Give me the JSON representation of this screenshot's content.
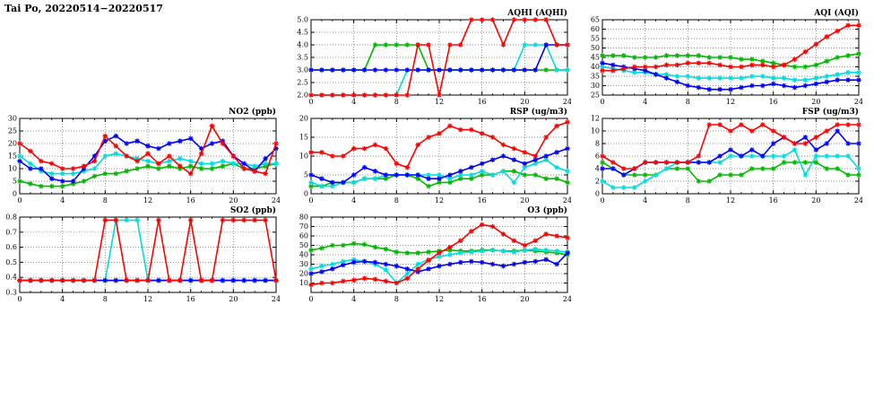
{
  "page_title": "Tai Po, 20220514−20220517",
  "colors": {
    "red": "#ff0000",
    "green": "#00b800",
    "blue": "#0000ff",
    "cyan": "#00dddd",
    "grid": "#666666",
    "axis": "#000000"
  },
  "chart_data": [
    {
      "id": "aqhi",
      "type": "line",
      "title": "AQHI (AQHI)",
      "xlabel": "",
      "ylabel": "",
      "xlim": [
        0,
        24
      ],
      "xticks": [
        0,
        4,
        8,
        12,
        16,
        20,
        24
      ],
      "ylim": [
        2,
        5
      ],
      "ytick_vals": [
        2,
        2.5,
        3,
        3.5,
        4,
        4.5,
        5
      ],
      "ytick_labels": [
        "2.0",
        "2.5",
        "3.0",
        "3.5",
        "4.0",
        "4.5",
        "5.0"
      ],
      "x_start": 0,
      "x_step": 1,
      "series": [
        {
          "name": "green",
          "color": "#00b800",
          "values": [
            3,
            3,
            3,
            3,
            3,
            3,
            4,
            4,
            4,
            4,
            4,
            3,
            3,
            3,
            3,
            3,
            3,
            3,
            3,
            3,
            3,
            3,
            3,
            3,
            3
          ]
        },
        {
          "name": "cyan",
          "color": "#00dddd",
          "values": [
            2,
            2,
            2,
            2,
            2,
            2,
            2,
            2,
            2,
            3,
            3,
            3,
            3,
            3,
            3,
            3,
            3,
            3,
            3,
            3,
            4,
            4,
            4,
            3,
            3
          ]
        },
        {
          "name": "blue",
          "color": "#0000ff",
          "values": [
            3,
            3,
            3,
            3,
            3,
            3,
            3,
            3,
            3,
            3,
            3,
            3,
            3,
            3,
            3,
            3,
            3,
            3,
            3,
            3,
            3,
            3,
            4,
            4,
            4
          ]
        },
        {
          "name": "red",
          "color": "#ff0000",
          "values": [
            2,
            2,
            2,
            2,
            2,
            2,
            2,
            2,
            2,
            2,
            4,
            4,
            2,
            4,
            4,
            5,
            5,
            5,
            4,
            5,
            5,
            5,
            5,
            4,
            4
          ]
        }
      ]
    },
    {
      "id": "aqi",
      "type": "line",
      "title": "AQI (AQI)",
      "xlabel": "",
      "ylabel": "",
      "xlim": [
        0,
        24
      ],
      "xticks": [
        0,
        4,
        8,
        12,
        16,
        20,
        24
      ],
      "ylim": [
        25,
        65
      ],
      "ytick_vals": [
        25,
        30,
        35,
        40,
        45,
        50,
        55,
        60,
        65
      ],
      "ytick_labels": [
        "25",
        "30",
        "35",
        "40",
        "45",
        "50",
        "55",
        "60",
        "65"
      ],
      "x_start": 0,
      "x_step": 1,
      "series": [
        {
          "name": "green",
          "color": "#00b800",
          "values": [
            46,
            46,
            46,
            45,
            45,
            45,
            46,
            46,
            46,
            46,
            45,
            45,
            45,
            44,
            44,
            43,
            42,
            41,
            40,
            40,
            41,
            43,
            45,
            46,
            47
          ]
        },
        {
          "name": "cyan",
          "color": "#00dddd",
          "values": [
            40,
            39,
            38,
            37,
            37,
            36,
            36,
            35,
            35,
            34,
            34,
            34,
            34,
            34,
            35,
            35,
            34,
            34,
            33,
            33,
            34,
            35,
            36,
            37,
            37
          ]
        },
        {
          "name": "blue",
          "color": "#0000ff",
          "values": [
            42,
            41,
            40,
            39,
            38,
            36,
            34,
            32,
            30,
            29,
            28,
            28,
            28,
            29,
            30,
            30,
            31,
            30,
            29,
            30,
            31,
            32,
            33,
            33,
            33
          ]
        },
        {
          "name": "red",
          "color": "#ff0000",
          "values": [
            38,
            38,
            39,
            40,
            40,
            40,
            41,
            41,
            42,
            42,
            42,
            41,
            40,
            40,
            41,
            41,
            40,
            41,
            44,
            48,
            52,
            56,
            59,
            62,
            62
          ]
        }
      ]
    },
    {
      "id": "no2",
      "type": "line",
      "title": "NO2 (ppb)",
      "xlabel": "",
      "ylabel": "",
      "xlim": [
        0,
        24
      ],
      "xticks": [
        0,
        4,
        8,
        12,
        16,
        20,
        24
      ],
      "ylim": [
        0,
        30
      ],
      "ytick_vals": [
        0,
        5,
        10,
        15,
        20,
        25,
        30
      ],
      "ytick_labels": [
        "0",
        "5",
        "10",
        "15",
        "20",
        "25",
        "30"
      ],
      "x_start": 0,
      "x_step": 1,
      "series": [
        {
          "name": "green",
          "color": "#00b800",
          "values": [
            5,
            4,
            3,
            3,
            3,
            4,
            5,
            7,
            8,
            8,
            9,
            10,
            11,
            10,
            11,
            10,
            11,
            10,
            10,
            11,
            12,
            10,
            10,
            11,
            12
          ]
        },
        {
          "name": "cyan",
          "color": "#00dddd",
          "values": [
            15,
            12,
            9,
            8,
            8,
            8,
            9,
            10,
            15,
            16,
            15,
            14,
            13,
            12,
            13,
            14,
            13,
            12,
            12,
            13,
            12,
            12,
            11,
            12,
            12
          ]
        },
        {
          "name": "blue",
          "color": "#0000ff",
          "values": [
            13,
            10,
            10,
            6,
            5,
            5,
            10,
            15,
            21,
            23,
            20,
            21,
            19,
            18,
            20,
            21,
            22,
            18,
            20,
            21,
            15,
            12,
            9,
            14,
            18
          ]
        },
        {
          "name": "red",
          "color": "#ff0000",
          "values": [
            20,
            17,
            13,
            12,
            10,
            10,
            11,
            13,
            23,
            19,
            15,
            13,
            16,
            12,
            15,
            11,
            8,
            16,
            27,
            20,
            15,
            10,
            9,
            8,
            20
          ]
        }
      ]
    },
    {
      "id": "rsp",
      "type": "line",
      "title": "RSP (ug/m3)",
      "xlabel": "",
      "ylabel": "",
      "xlim": [
        0,
        24
      ],
      "xticks": [
        0,
        4,
        8,
        12,
        16,
        20,
        24
      ],
      "ylim": [
        0,
        20
      ],
      "ytick_vals": [
        0,
        5,
        10,
        15,
        20
      ],
      "ytick_labels": [
        "0",
        "5",
        "10",
        "15",
        "20"
      ],
      "x_start": 0,
      "x_step": 1,
      "series": [
        {
          "name": "green",
          "color": "#00b800",
          "values": [
            2,
            2,
            3,
            3,
            3,
            4,
            4,
            4,
            5,
            5,
            4,
            2,
            3,
            3,
            4,
            4,
            5,
            5,
            6,
            6,
            5,
            5,
            4,
            4,
            3
          ]
        },
        {
          "name": "cyan",
          "color": "#00dddd",
          "values": [
            3,
            2,
            2,
            3,
            3,
            4,
            4,
            5,
            5,
            5,
            5,
            5,
            5,
            4,
            5,
            5,
            6,
            5,
            6,
            3,
            7,
            8,
            9,
            7,
            6
          ]
        },
        {
          "name": "blue",
          "color": "#0000ff",
          "values": [
            5,
            4,
            3,
            3,
            5,
            7,
            6,
            5,
            5,
            5,
            5,
            4,
            4,
            5,
            6,
            7,
            8,
            9,
            10,
            9,
            8,
            9,
            10,
            11,
            12
          ]
        },
        {
          "name": "red",
          "color": "#ff0000",
          "values": [
            11,
            11,
            10,
            10,
            12,
            12,
            13,
            12,
            8,
            7,
            13,
            15,
            16,
            18,
            17,
            17,
            16,
            15,
            13,
            12,
            11,
            10,
            15,
            18,
            19
          ]
        }
      ]
    },
    {
      "id": "fsp",
      "type": "line",
      "title": "FSP (ug/m3)",
      "xlabel": "",
      "ylabel": "",
      "xlim": [
        0,
        24
      ],
      "xticks": [
        0,
        4,
        8,
        12,
        16,
        20,
        24
      ],
      "ylim": [
        0,
        12
      ],
      "ytick_vals": [
        0,
        2,
        4,
        6,
        8,
        10,
        12
      ],
      "ytick_labels": [
        "0",
        "2",
        "4",
        "6",
        "8",
        "10",
        "12"
      ],
      "x_start": 0,
      "x_step": 1,
      "series": [
        {
          "name": "green",
          "color": "#00b800",
          "values": [
            5,
            4,
            3,
            3,
            3,
            3,
            4,
            4,
            4,
            2,
            2,
            3,
            3,
            3,
            4,
            4,
            4,
            5,
            5,
            5,
            5,
            4,
            4,
            3,
            3
          ]
        },
        {
          "name": "cyan",
          "color": "#00dddd",
          "values": [
            2,
            1,
            1,
            1,
            2,
            3,
            4,
            5,
            5,
            5,
            5,
            5,
            6,
            6,
            6,
            6,
            6,
            6,
            7,
            3,
            6,
            6,
            6,
            6,
            4
          ]
        },
        {
          "name": "blue",
          "color": "#0000ff",
          "values": [
            4,
            4,
            3,
            4,
            5,
            5,
            5,
            5,
            5,
            5,
            5,
            6,
            7,
            6,
            7,
            6,
            8,
            9,
            8,
            9,
            7,
            8,
            10,
            8,
            8
          ]
        },
        {
          "name": "red",
          "color": "#ff0000",
          "values": [
            6,
            5,
            4,
            4,
            5,
            5,
            5,
            5,
            5,
            6,
            11,
            11,
            10,
            11,
            10,
            11,
            10,
            9,
            8,
            8,
            9,
            10,
            11,
            11,
            11
          ]
        }
      ]
    },
    {
      "id": "so2",
      "type": "line",
      "title": "SO2 (ppb)",
      "xlabel": "",
      "ylabel": "",
      "xlim": [
        0,
        24
      ],
      "xticks": [
        0,
        4,
        8,
        12,
        16,
        20,
        24
      ],
      "ylim": [
        0.3,
        0.8
      ],
      "ytick_vals": [
        0.3,
        0.4,
        0.5,
        0.6,
        0.7,
        0.8
      ],
      "ytick_labels": [
        "0.3",
        "0.4",
        "0.5",
        "0.6",
        "0.7",
        "0.8"
      ],
      "x_start": 0,
      "x_step": 1,
      "series": [
        {
          "name": "green",
          "color": "#00b800",
          "values": [
            0.38,
            0.38,
            0.38,
            0.38,
            0.38,
            0.38,
            0.38,
            0.38,
            0.38,
            0.38,
            0.38,
            0.38,
            0.38,
            0.38,
            0.38,
            0.38,
            0.38,
            0.38,
            0.38,
            0.38,
            0.38,
            0.38,
            0.38,
            0.38,
            0.38
          ]
        },
        {
          "name": "cyan",
          "color": "#00dddd",
          "values": [
            0.38,
            0.38,
            0.38,
            0.38,
            0.38,
            0.38,
            0.38,
            0.38,
            0.38,
            0.78,
            0.78,
            0.78,
            0.38,
            0.38,
            0.38,
            0.38,
            0.38,
            0.38,
            0.38,
            0.38,
            0.38,
            0.38,
            0.38,
            0.38,
            0.38
          ]
        },
        {
          "name": "blue",
          "color": "#0000ff",
          "values": [
            0.38,
            0.38,
            0.38,
            0.38,
            0.38,
            0.38,
            0.38,
            0.38,
            0.38,
            0.38,
            0.38,
            0.38,
            0.38,
            0.38,
            0.38,
            0.38,
            0.38,
            0.38,
            0.38,
            0.38,
            0.38,
            0.38,
            0.38,
            0.38,
            0.38
          ]
        },
        {
          "name": "red",
          "color": "#ff0000",
          "values": [
            0.38,
            0.38,
            0.38,
            0.38,
            0.38,
            0.38,
            0.38,
            0.38,
            0.78,
            0.78,
            0.38,
            0.38,
            0.38,
            0.78,
            0.38,
            0.38,
            0.78,
            0.38,
            0.38,
            0.78,
            0.78,
            0.78,
            0.78,
            0.78,
            0.38
          ]
        }
      ]
    },
    {
      "id": "o3",
      "type": "line",
      "title": "O3 (ppb)",
      "xlabel": "",
      "ylabel": "",
      "xlim": [
        0,
        24
      ],
      "xticks": [
        0,
        4,
        8,
        12,
        16,
        20,
        24
      ],
      "ylim": [
        0,
        80
      ],
      "ytick_vals": [
        10,
        20,
        30,
        40,
        50,
        60,
        70,
        80
      ],
      "ytick_labels": [
        "10",
        "20",
        "30",
        "40",
        "50",
        "60",
        "70",
        "80"
      ],
      "x_start": 0,
      "x_step": 1,
      "series": [
        {
          "name": "green",
          "color": "#00b800",
          "values": [
            45,
            47,
            50,
            50,
            52,
            51,
            48,
            46,
            43,
            42,
            42,
            43,
            44,
            45,
            44,
            44,
            45,
            45,
            44,
            44,
            45,
            44,
            43,
            42,
            40
          ]
        },
        {
          "name": "cyan",
          "color": "#00dddd",
          "values": [
            25,
            28,
            30,
            33,
            35,
            33,
            30,
            24,
            10,
            20,
            30,
            35,
            38,
            40,
            42,
            43,
            44,
            45,
            44,
            43,
            45,
            46,
            45,
            44,
            43
          ]
        },
        {
          "name": "blue",
          "color": "#0000ff",
          "values": [
            20,
            22,
            25,
            29,
            32,
            33,
            32,
            30,
            28,
            25,
            22,
            25,
            28,
            30,
            32,
            33,
            32,
            30,
            28,
            30,
            32,
            33,
            35,
            30,
            42
          ]
        },
        {
          "name": "red",
          "color": "#ff0000",
          "values": [
            8,
            10,
            10,
            12,
            13,
            15,
            14,
            12,
            10,
            15,
            25,
            34,
            42,
            48,
            55,
            65,
            72,
            70,
            62,
            55,
            50,
            55,
            62,
            60,
            58
          ]
        }
      ]
    }
  ]
}
